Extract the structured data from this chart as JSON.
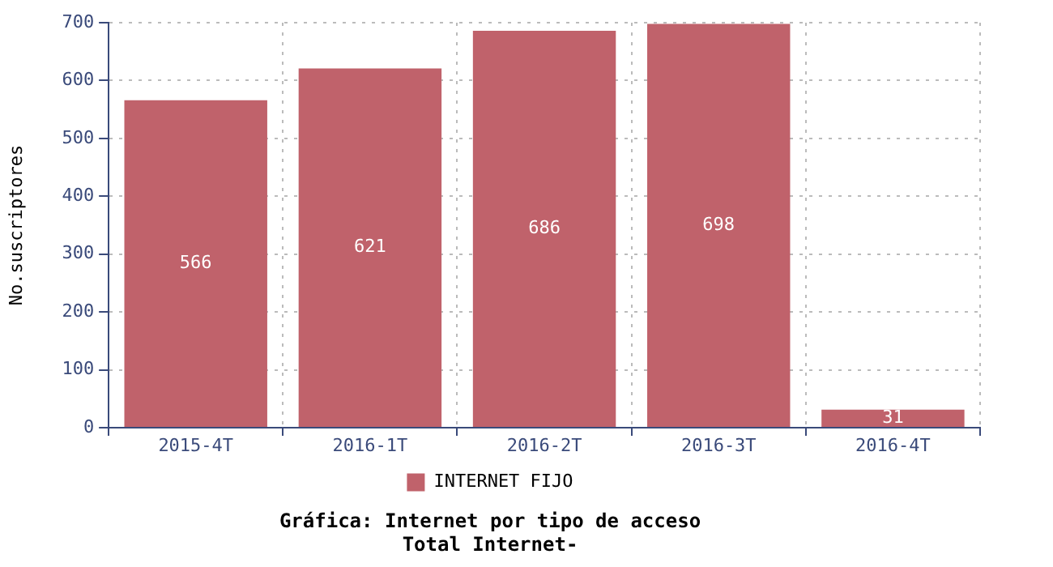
{
  "chart_data": {
    "type": "bar",
    "title": "Gráfica: Internet por tipo de acceso",
    "subtitle": "Total Internet-",
    "ylabel": "No.suscriptores",
    "categories": [
      "2015-4T",
      "2016-1T",
      "2016-2T",
      "2016-3T",
      "2016-4T"
    ],
    "series": [
      {
        "name": "INTERNET FIJO",
        "color": "#c0626b",
        "values": [
          566,
          621,
          686,
          698,
          31
        ]
      }
    ],
    "ylim": [
      0,
      700
    ],
    "yticks": [
      0,
      100,
      200,
      300,
      400,
      500,
      600,
      700
    ],
    "grid": true,
    "legend": "bottom",
    "data_labels": true
  }
}
